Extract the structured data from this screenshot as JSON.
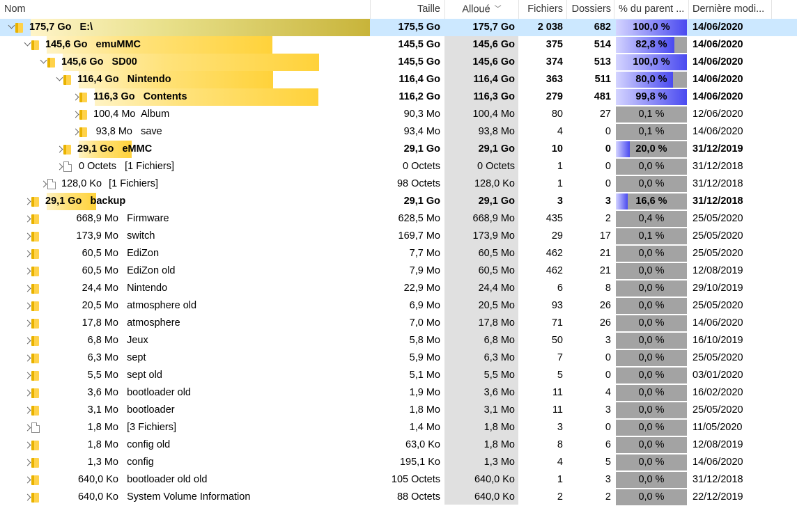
{
  "columns": {
    "name": "Nom",
    "taille": "Taille",
    "alloue": "Alloué",
    "fichiers": "Fichiers",
    "dossiers": "Dossiers",
    "pct": "% du parent ...",
    "date": "Dernière modi..."
  },
  "colors": {
    "selected_row": "#cce8ff",
    "folder": "#ffd24a",
    "pct_fill": "#4a4af0",
    "size_bar": "#ffd84a"
  },
  "rows": [
    {
      "depth": 0,
      "exp": "open",
      "icon": "folder",
      "size_text": "175,7 Go",
      "label": "E:\\",
      "bar": 1.0,
      "taille": "175,5 Go",
      "alloue": "175,7 Go",
      "fichiers": "2 038",
      "dossiers": "682",
      "pct": "100,0 %",
      "pct_value": 1.0,
      "date": "14/06/2020",
      "bold": true,
      "selected": true
    },
    {
      "depth": 1,
      "exp": "open",
      "icon": "folder",
      "size_text": "145,6 Go",
      "label": "emuMMC",
      "bar": 0.828,
      "taille": "145,5 Go",
      "alloue": "145,6 Go",
      "fichiers": "375",
      "dossiers": "514",
      "pct": "82,8 %",
      "pct_value": 0.828,
      "date": "14/06/2020",
      "bold": true
    },
    {
      "depth": 2,
      "exp": "open",
      "icon": "folder",
      "size_text": "145,6 Go",
      "label": "SD00",
      "bar": 1.0,
      "taille": "145,5 Go",
      "alloue": "145,6 Go",
      "fichiers": "374",
      "dossiers": "513",
      "pct": "100,0 %",
      "pct_value": 1.0,
      "date": "14/06/2020",
      "bold": true
    },
    {
      "depth": 3,
      "exp": "open",
      "icon": "folder",
      "size_text": "116,4 Go",
      "label": "Nintendo",
      "bar": 0.8,
      "taille": "116,4 Go",
      "alloue": "116,4 Go",
      "fichiers": "363",
      "dossiers": "511",
      "pct": "80,0 %",
      "pct_value": 0.8,
      "date": "14/06/2020",
      "bold": true
    },
    {
      "depth": 4,
      "exp": "closed",
      "icon": "folder",
      "size_text": "116,3 Go",
      "label": "Contents",
      "bar": 0.998,
      "taille": "116,2 Go",
      "alloue": "116,3 Go",
      "fichiers": "279",
      "dossiers": "481",
      "pct": "99,8 %",
      "pct_value": 0.998,
      "date": "14/06/2020",
      "bold": true
    },
    {
      "depth": 4,
      "exp": "closed",
      "icon": "folder",
      "size_text": "100,4 Mo",
      "label": "Album",
      "bar": 0.001,
      "taille": "90,3 Mo",
      "alloue": "100,4 Mo",
      "fichiers": "80",
      "dossiers": "27",
      "pct": "0,1 %",
      "pct_value": 0.001,
      "date": "12/06/2020",
      "bold": false
    },
    {
      "depth": 4,
      "exp": "closed",
      "icon": "folder",
      "size_text": "93,8 Mo",
      "label": "save",
      "bar": 0.001,
      "taille": "93,4 Mo",
      "alloue": "93,8 Mo",
      "fichiers": "4",
      "dossiers": "0",
      "pct": "0,1 %",
      "pct_value": 0.001,
      "date": "14/06/2020",
      "bold": false
    },
    {
      "depth": 3,
      "exp": "closed",
      "icon": "folder",
      "size_text": "29,1 Go",
      "label": "eMMC",
      "bar": 0.2,
      "taille": "29,1 Go",
      "alloue": "29,1 Go",
      "fichiers": "10",
      "dossiers": "0",
      "pct": "20,0 %",
      "pct_value": 0.2,
      "date": "31/12/2019",
      "bold": true
    },
    {
      "depth": 3,
      "exp": "closed",
      "icon": "file",
      "size_text": "0 Octets",
      "label": "[1 Fichiers]",
      "bar": 0,
      "taille": "0 Octets",
      "alloue": "0 Octets",
      "fichiers": "1",
      "dossiers": "0",
      "pct": "0,0 %",
      "pct_value": 0,
      "date": "31/12/2018",
      "bold": false
    },
    {
      "depth": 2,
      "exp": "closed",
      "icon": "file",
      "size_text": "128,0 Ko",
      "label": "[1 Fichiers]",
      "bar": 0,
      "taille": "98 Octets",
      "alloue": "128,0 Ko",
      "fichiers": "1",
      "dossiers": "0",
      "pct": "0,0 %",
      "pct_value": 0,
      "date": "31/12/2018",
      "bold": false
    },
    {
      "depth": 1,
      "exp": "closed",
      "icon": "folder",
      "size_text": "29,1 Go",
      "label": "backup",
      "bar": 0.166,
      "taille": "29,1 Go",
      "alloue": "29,1 Go",
      "fichiers": "3",
      "dossiers": "3",
      "pct": "16,6 %",
      "pct_value": 0.166,
      "date": "31/12/2018",
      "bold": true
    },
    {
      "depth": 1,
      "exp": "closed",
      "icon": "folder",
      "size_text": "668,9 Mo",
      "label": "Firmware",
      "bar": 0.004,
      "taille": "628,5 Mo",
      "alloue": "668,9 Mo",
      "fichiers": "435",
      "dossiers": "2",
      "pct": "0,4 %",
      "pct_value": 0.004,
      "date": "25/05/2020",
      "bold": false
    },
    {
      "depth": 1,
      "exp": "closed",
      "icon": "folder",
      "size_text": "173,9 Mo",
      "label": "switch",
      "bar": 0.001,
      "taille": "169,7 Mo",
      "alloue": "173,9 Mo",
      "fichiers": "29",
      "dossiers": "17",
      "pct": "0,1 %",
      "pct_value": 0.001,
      "date": "25/05/2020",
      "bold": false
    },
    {
      "depth": 1,
      "exp": "closed",
      "icon": "folder",
      "size_text": "60,5 Mo",
      "label": "EdiZon",
      "bar": 0,
      "taille": "7,7 Mo",
      "alloue": "60,5 Mo",
      "fichiers": "462",
      "dossiers": "21",
      "pct": "0,0 %",
      "pct_value": 0,
      "date": "25/05/2020",
      "bold": false
    },
    {
      "depth": 1,
      "exp": "closed",
      "icon": "folder",
      "size_text": "60,5 Mo",
      "label": "EdiZon old",
      "bar": 0,
      "taille": "7,9 Mo",
      "alloue": "60,5 Mo",
      "fichiers": "462",
      "dossiers": "21",
      "pct": "0,0 %",
      "pct_value": 0,
      "date": "12/08/2019",
      "bold": false
    },
    {
      "depth": 1,
      "exp": "closed",
      "icon": "folder",
      "size_text": "24,4 Mo",
      "label": "Nintendo",
      "bar": 0,
      "taille": "22,9 Mo",
      "alloue": "24,4 Mo",
      "fichiers": "6",
      "dossiers": "8",
      "pct": "0,0 %",
      "pct_value": 0,
      "date": "29/10/2019",
      "bold": false
    },
    {
      "depth": 1,
      "exp": "closed",
      "icon": "folder",
      "size_text": "20,5 Mo",
      "label": "atmosphere old",
      "bar": 0,
      "taille": "6,9 Mo",
      "alloue": "20,5 Mo",
      "fichiers": "93",
      "dossiers": "26",
      "pct": "0,0 %",
      "pct_value": 0,
      "date": "25/05/2020",
      "bold": false
    },
    {
      "depth": 1,
      "exp": "closed",
      "icon": "folder",
      "size_text": "17,8 Mo",
      "label": "atmosphere",
      "bar": 0,
      "taille": "7,0 Mo",
      "alloue": "17,8 Mo",
      "fichiers": "71",
      "dossiers": "26",
      "pct": "0,0 %",
      "pct_value": 0,
      "date": "14/06/2020",
      "bold": false
    },
    {
      "depth": 1,
      "exp": "closed",
      "icon": "folder",
      "size_text": "6,8 Mo",
      "label": "Jeux",
      "bar": 0,
      "taille": "5,8 Mo",
      "alloue": "6,8 Mo",
      "fichiers": "50",
      "dossiers": "3",
      "pct": "0,0 %",
      "pct_value": 0,
      "date": "16/10/2019",
      "bold": false
    },
    {
      "depth": 1,
      "exp": "closed",
      "icon": "folder",
      "size_text": "6,3 Mo",
      "label": "sept",
      "bar": 0,
      "taille": "5,9 Mo",
      "alloue": "6,3 Mo",
      "fichiers": "7",
      "dossiers": "0",
      "pct": "0,0 %",
      "pct_value": 0,
      "date": "25/05/2020",
      "bold": false
    },
    {
      "depth": 1,
      "exp": "closed",
      "icon": "folder",
      "size_text": "5,5 Mo",
      "label": "sept old",
      "bar": 0,
      "taille": "5,1 Mo",
      "alloue": "5,5 Mo",
      "fichiers": "5",
      "dossiers": "0",
      "pct": "0,0 %",
      "pct_value": 0,
      "date": "03/01/2020",
      "bold": false
    },
    {
      "depth": 1,
      "exp": "closed",
      "icon": "folder",
      "size_text": "3,6 Mo",
      "label": "bootloader old",
      "bar": 0,
      "taille": "1,9 Mo",
      "alloue": "3,6 Mo",
      "fichiers": "11",
      "dossiers": "4",
      "pct": "0,0 %",
      "pct_value": 0,
      "date": "16/02/2020",
      "bold": false
    },
    {
      "depth": 1,
      "exp": "closed",
      "icon": "folder",
      "size_text": "3,1 Mo",
      "label": "bootloader",
      "bar": 0,
      "taille": "1,8 Mo",
      "alloue": "3,1 Mo",
      "fichiers": "11",
      "dossiers": "3",
      "pct": "0,0 %",
      "pct_value": 0,
      "date": "25/05/2020",
      "bold": false
    },
    {
      "depth": 1,
      "exp": "closed",
      "icon": "file",
      "size_text": "1,8 Mo",
      "label": "[3 Fichiers]",
      "bar": 0,
      "taille": "1,4 Mo",
      "alloue": "1,8 Mo",
      "fichiers": "3",
      "dossiers": "0",
      "pct": "0,0 %",
      "pct_value": 0,
      "date": "11/05/2020",
      "bold": false
    },
    {
      "depth": 1,
      "exp": "closed",
      "icon": "folder",
      "size_text": "1,8 Mo",
      "label": "config old",
      "bar": 0,
      "taille": "63,0 Ko",
      "alloue": "1,8 Mo",
      "fichiers": "8",
      "dossiers": "6",
      "pct": "0,0 %",
      "pct_value": 0,
      "date": "12/08/2019",
      "bold": false
    },
    {
      "depth": 1,
      "exp": "closed",
      "icon": "folder",
      "size_text": "1,3 Mo",
      "label": "config",
      "bar": 0,
      "taille": "195,1 Ko",
      "alloue": "1,3 Mo",
      "fichiers": "4",
      "dossiers": "5",
      "pct": "0,0 %",
      "pct_value": 0,
      "date": "14/06/2020",
      "bold": false
    },
    {
      "depth": 1,
      "exp": "closed",
      "icon": "folder",
      "size_text": "640,0 Ko",
      "label": "bootloader old old",
      "bar": 0,
      "taille": "105 Octets",
      "alloue": "640,0 Ko",
      "fichiers": "1",
      "dossiers": "3",
      "pct": "0,0 %",
      "pct_value": 0,
      "date": "31/12/2018",
      "bold": false
    },
    {
      "depth": 1,
      "exp": "closed",
      "icon": "folder",
      "size_text": "640,0 Ko",
      "label": "System Volume Information",
      "bar": 0,
      "taille": "88 Octets",
      "alloue": "640,0 Ko",
      "fichiers": "2",
      "dossiers": "2",
      "pct": "0,0 %",
      "pct_value": 0,
      "date": "22/12/2019",
      "bold": false
    }
  ]
}
